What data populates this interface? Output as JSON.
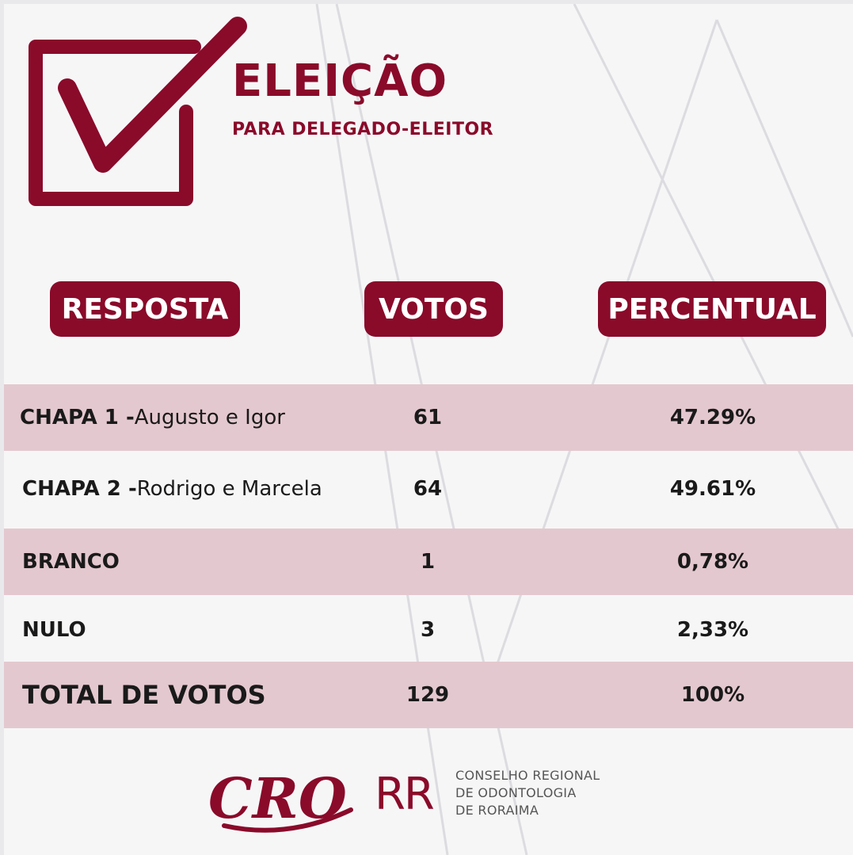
{
  "header": {
    "title": "ELEIÇÃO",
    "subtitle": "PARA DELEGADO-ELEITOR"
  },
  "columns": {
    "resposta": "RESPOSTA",
    "votos": "VOTOS",
    "percentual": "PERCENTUAL"
  },
  "rows": [
    {
      "label_bold": "CHAPA 1 - ",
      "label_name": "Augusto e Igor",
      "votes": "61",
      "percent": "47.29%"
    },
    {
      "label_bold": "CHAPA 2 - ",
      "label_name": "Rodrigo e Marcela",
      "votes": "64",
      "percent": "49.61%"
    },
    {
      "label_bold": "BRANCO",
      "label_name": "",
      "votes": "1",
      "percent": "0,78%"
    },
    {
      "label_bold": "NULO",
      "label_name": "",
      "votes": "3",
      "percent": "2,33%"
    }
  ],
  "total": {
    "label": "TOTAL DE VOTOS",
    "votes": "129",
    "percent": "100%"
  },
  "footer": {
    "logo_text": "CRO",
    "state": "RR",
    "org_line1": "CONSELHO REGIONAL",
    "org_line2": "DE ODONTOLOGIA",
    "org_line3": "DE RORAIMA"
  },
  "colors": {
    "brand": "#8a0a2a",
    "row_shade": "#e4c8cf",
    "background": "#f6f6f7"
  },
  "icons": [
    "checkbox-check-icon"
  ]
}
